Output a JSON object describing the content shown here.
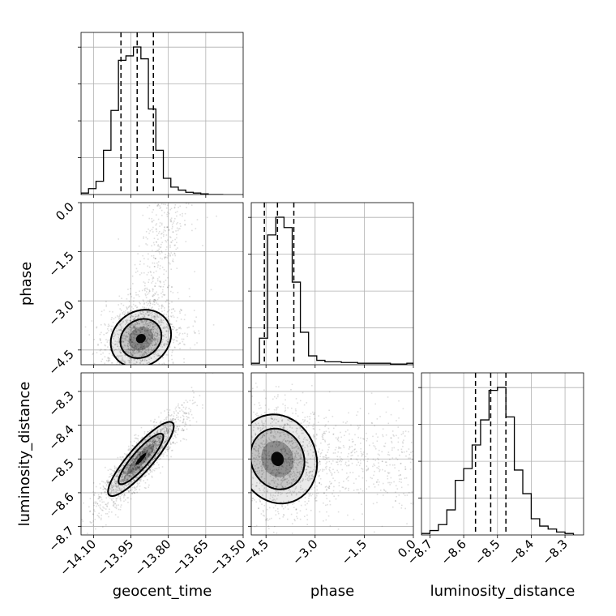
{
  "chart_data": {
    "type": "corner",
    "parameters": [
      "geocent_time",
      "phase",
      "luminosity_distance"
    ],
    "axis_labels": {
      "x": [
        "geocent_time",
        "phase",
        "luminosity_distance"
      ],
      "y_row1": "phase",
      "y_row2": "luminosity_distance"
    },
    "ranges": {
      "geocent_time": [
        -14.15,
        -13.5
      ],
      "phase": [
        -4.95,
        0.0
      ],
      "luminosity_distance": [
        -8.725,
        -8.245
      ]
    },
    "ticks": {
      "geocent_time": [
        -14.1,
        -13.95,
        -13.8,
        -13.65,
        -13.5
      ],
      "phase": [
        -4.5,
        -3.0,
        -1.5,
        0.0
      ],
      "luminosity_distance": [
        -8.7,
        -8.6,
        -8.5,
        -8.4,
        -8.3
      ]
    },
    "tick_labels": {
      "geocent_time": [
        "−14.10",
        "−13.95",
        "−13.80",
        "−13.65",
        "−13.50"
      ],
      "phase": [
        "−4.5",
        "−3.0",
        "−1.5",
        "0.0"
      ],
      "luminosity_distance": [
        "−8.7",
        "−8.6",
        "−8.5",
        "−8.4",
        "−8.3"
      ]
    },
    "grid": true,
    "quantiles": {
      "geocent_time": [
        -13.99,
        -13.925,
        -13.86
      ],
      "phase": [
        -4.55,
        -4.15,
        -3.65
      ],
      "luminosity_distance": [
        -8.565,
        -8.52,
        -8.475
      ]
    },
    "histograms": {
      "geocent_time": {
        "edges": [
          -14.15,
          -14.12,
          -14.09,
          -14.06,
          -14.03,
          -14.0,
          -13.97,
          -13.94,
          -13.91,
          -13.88,
          -13.85,
          -13.82,
          -13.79,
          -13.76,
          -13.73,
          -13.7,
          -13.67,
          -13.64,
          -13.61,
          -13.58
        ],
        "counts": [
          0.01,
          0.04,
          0.09,
          0.3,
          0.57,
          0.91,
          0.94,
          1.0,
          0.92,
          0.58,
          0.3,
          0.11,
          0.05,
          0.03,
          0.015,
          0.01,
          0.005,
          0.0,
          0.0
        ]
      },
      "phase": {
        "edges": [
          -4.95,
          -4.7,
          -4.45,
          -4.2,
          -3.95,
          -3.7,
          -3.45,
          -3.2,
          -2.95,
          -2.7,
          -2.45,
          -2.2,
          -1.95,
          -1.7,
          -1.45,
          -1.2,
          -0.95,
          -0.7,
          -0.45,
          -0.2,
          0.0
        ],
        "counts": [
          0.01,
          0.18,
          0.88,
          1.0,
          0.93,
          0.56,
          0.22,
          0.06,
          0.03,
          0.02,
          0.02,
          0.015,
          0.015,
          0.01,
          0.01,
          0.01,
          0.01,
          0.005,
          0.005,
          0.01
        ]
      },
      "luminosity_distance": {
        "edges": [
          -8.725,
          -8.7,
          -8.675,
          -8.65,
          -8.625,
          -8.6,
          -8.575,
          -8.55,
          -8.525,
          -8.5,
          -8.475,
          -8.45,
          -8.425,
          -8.4,
          -8.375,
          -8.35,
          -8.325,
          -8.3,
          -8.275
        ],
        "counts": [
          0.01,
          0.03,
          0.07,
          0.17,
          0.37,
          0.45,
          0.61,
          0.78,
          0.98,
          1.0,
          0.8,
          0.44,
          0.28,
          0.11,
          0.06,
          0.04,
          0.02,
          0.01
        ]
      }
    },
    "contours": {
      "phase_vs_geocent_time": {
        "center": [
          -13.91,
          -4.15
        ],
        "sigma": [
          0.055,
          0.4
        ],
        "rho": 0.15
      },
      "luminosity_distance_vs_geocent_time": {
        "center": [
          -13.91,
          -8.5
        ],
        "sigma": [
          0.06,
          0.05
        ],
        "rho": 0.88
      },
      "luminosity_distance_vs_phase": {
        "center": [
          -4.15,
          -8.5
        ],
        "sigma": [
          0.55,
          0.06
        ],
        "rho": -0.1
      }
    }
  }
}
